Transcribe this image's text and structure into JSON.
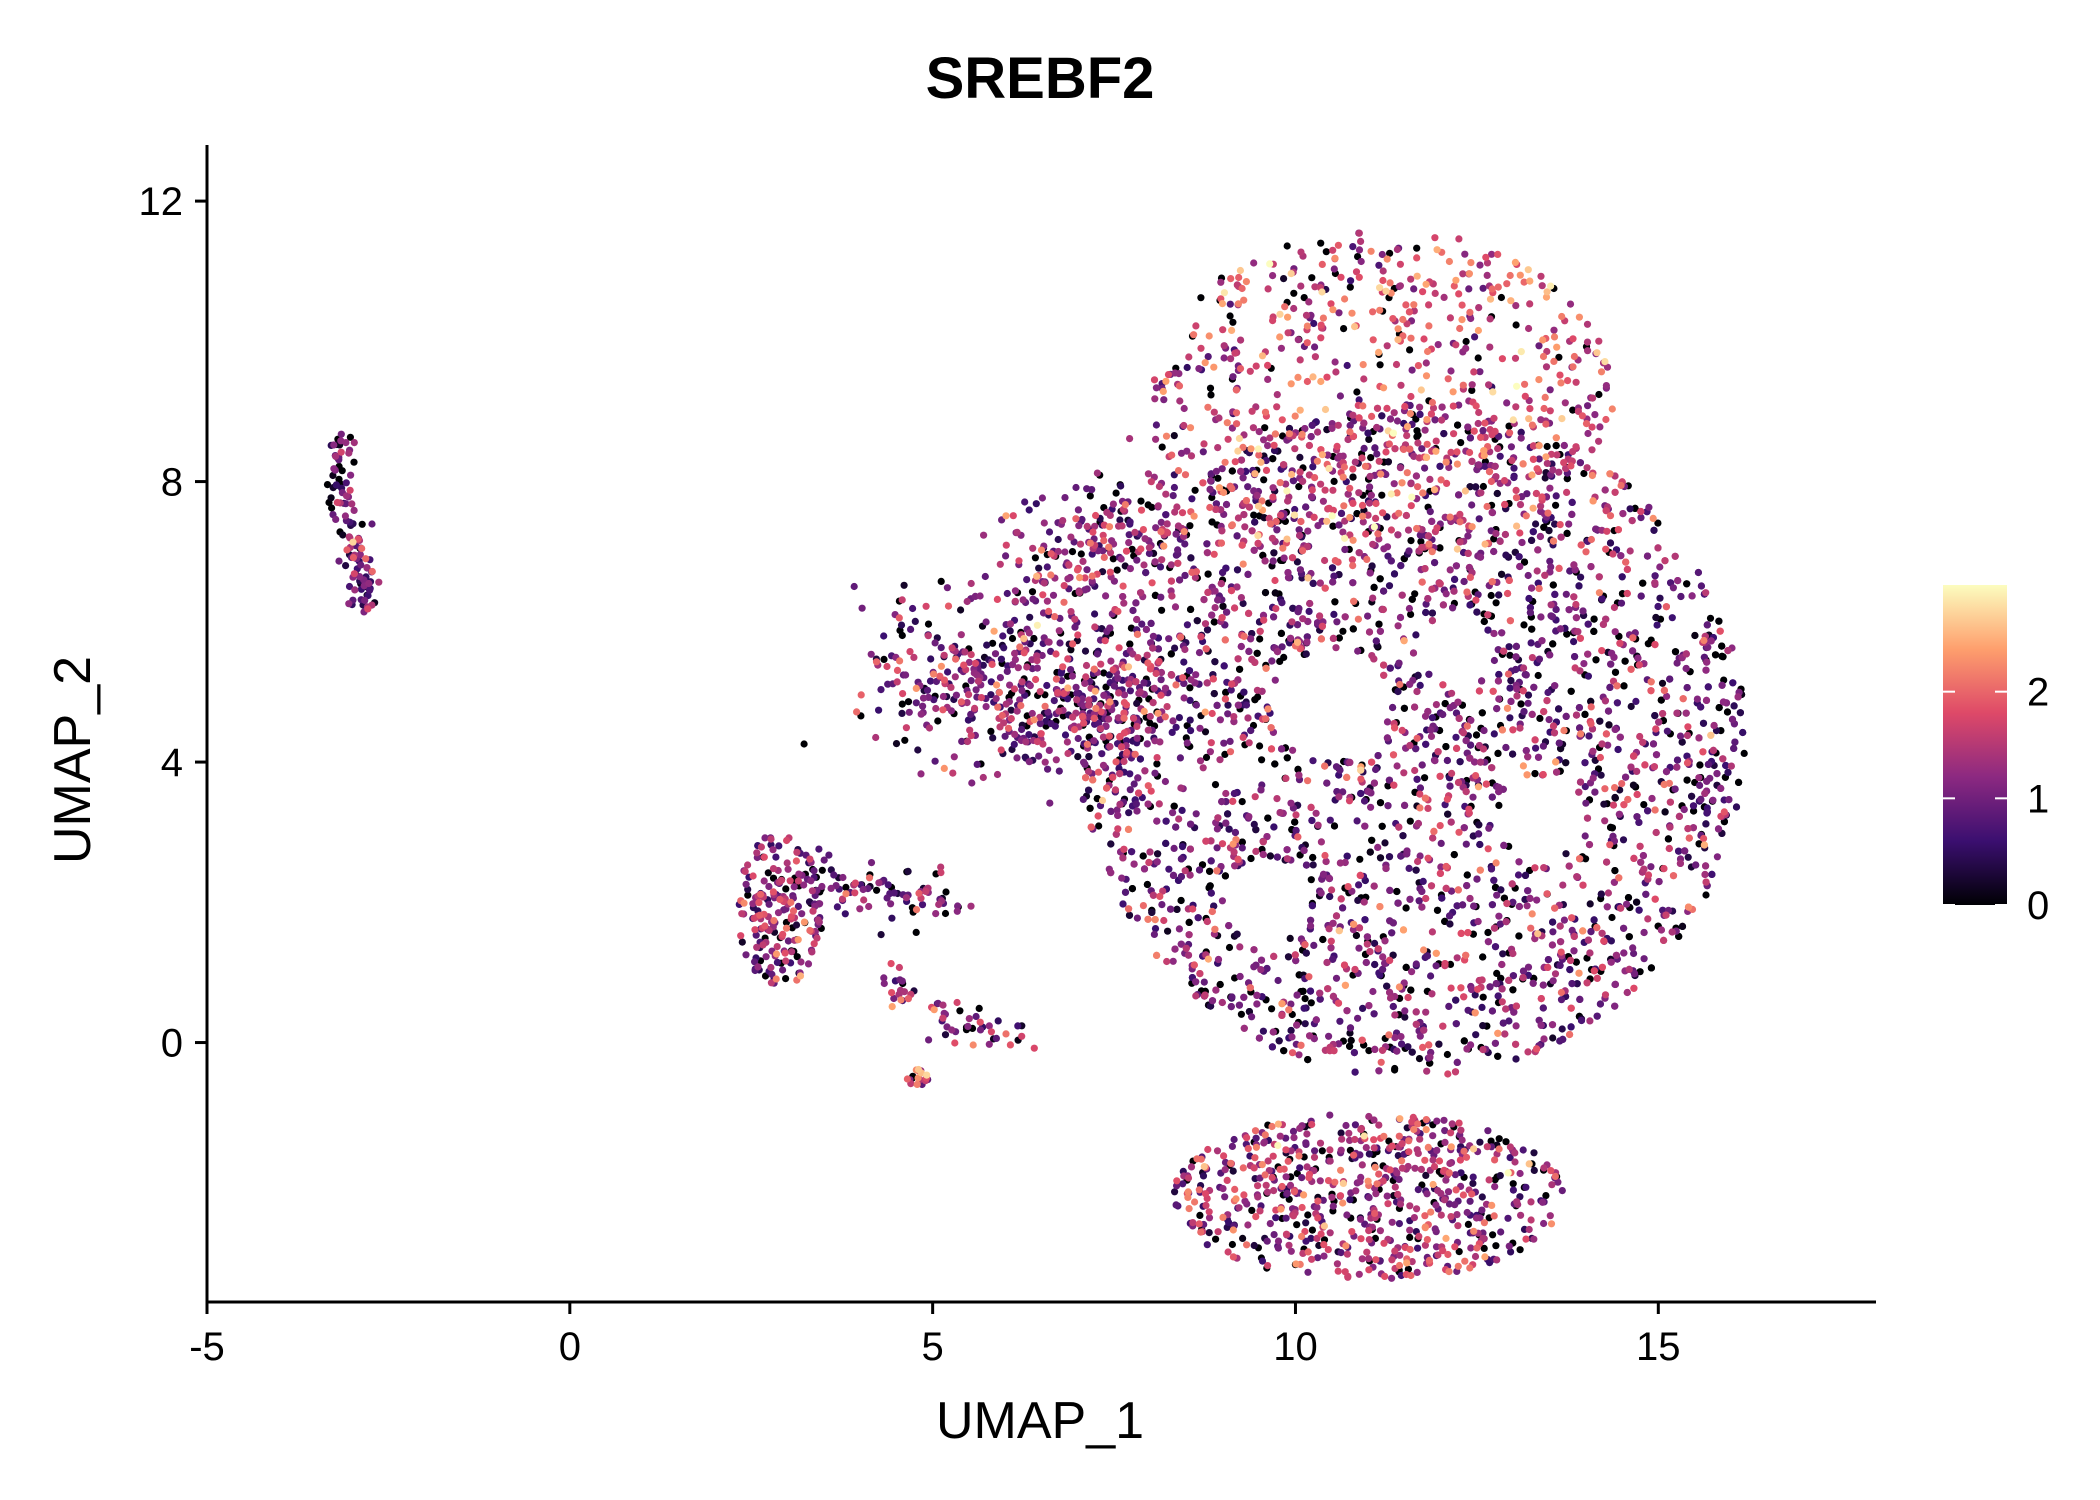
{
  "chart_data": {
    "type": "scatter",
    "title": "SREBF2",
    "xlabel": "UMAP_1",
    "ylabel": "UMAP_2",
    "xlim": [
      -5,
      18
    ],
    "ylim": [
      -3.7,
      12.8
    ],
    "xticks": [
      -5,
      0,
      5,
      10,
      15
    ],
    "xtick_labels": [
      "-5",
      "0",
      "5",
      "10",
      "15"
    ],
    "yticks": [
      0,
      4,
      8,
      12
    ],
    "ytick_labels": [
      "0",
      "4",
      "8",
      "12"
    ],
    "grid": false,
    "colorbar": {
      "range": [
        0,
        3
      ],
      "ticks": [
        0,
        1,
        2
      ],
      "tick_labels": [
        "0",
        "1",
        "2"
      ],
      "colormap": "magma",
      "colors": [
        "#000004",
        "#3b0f70",
        "#8c2981",
        "#de4968",
        "#fe9f6d",
        "#fcfdbf"
      ]
    },
    "clusters": [
      {
        "name": "thin_strand",
        "points": 120,
        "shape": "polyline",
        "path": [
          [
            -3.15,
            8.65
          ],
          [
            -3.2,
            8.0
          ],
          [
            -3.05,
            7.4
          ],
          [
            -2.9,
            6.8
          ],
          [
            -2.8,
            6.2
          ]
        ],
        "spread": 0.09,
        "mean_expr": 1.1,
        "ymin_edge": 6.1
      },
      {
        "name": "left_patch",
        "points": 200,
        "shape": "ellipse",
        "center": [
          2.9,
          1.9
        ],
        "radii": [
          0.6,
          1.1
        ],
        "mean_expr": 1.2
      },
      {
        "name": "left_patch_tail",
        "points": 90,
        "shape": "polyline",
        "path": [
          [
            3.2,
            2.3
          ],
          [
            4.2,
            2.2
          ],
          [
            5.3,
            2.0
          ]
        ],
        "spread": 0.18,
        "mean_expr": 0.9
      },
      {
        "name": "left_patch_lower",
        "points": 60,
        "shape": "polyline",
        "path": [
          [
            4.4,
            0.9
          ],
          [
            5.2,
            0.3
          ],
          [
            6.1,
            0.05
          ]
        ],
        "spread": 0.15,
        "mean_expr": 1.2
      },
      {
        "name": "small_dot",
        "points": 18,
        "shape": "ellipse",
        "center": [
          4.8,
          -0.5
        ],
        "radii": [
          0.15,
          0.12
        ],
        "mean_expr": 1.7
      },
      {
        "name": "main_body",
        "points": 4200,
        "shape": "ellipse",
        "center": [
          11.6,
          4.3
        ],
        "radii": [
          4.6,
          4.8
        ],
        "mean_expr": 1.1,
        "holes": [
          [
            10.5,
            4.8,
            0.8
          ],
          [
            8.6,
            4.1,
            0.7
          ],
          [
            9.6,
            2.0,
            0.6
          ],
          [
            13.4,
            3.2,
            0.6
          ],
          [
            12.2,
            5.6,
            0.5
          ],
          [
            13.3,
            9.6,
            0.8
          ]
        ]
      },
      {
        "name": "main_top",
        "points": 700,
        "shape": "ellipse",
        "center": [
          11.2,
          9.2
        ],
        "radii": [
          3.2,
          2.4
        ],
        "mean_expr": 1.7
      },
      {
        "name": "left_arm",
        "points": 600,
        "shape": "polyline",
        "path": [
          [
            4.6,
            5.3
          ],
          [
            6.0,
            5.0
          ],
          [
            7.3,
            4.7
          ],
          [
            8.6,
            4.4
          ]
        ],
        "spread": 0.55,
        "mean_expr": 1.1
      },
      {
        "name": "upper_left_arm",
        "points": 250,
        "shape": "polyline",
        "path": [
          [
            6.2,
            6.4
          ],
          [
            7.3,
            7.2
          ],
          [
            8.4,
            7.8
          ]
        ],
        "spread": 0.45,
        "mean_expr": 1.2
      },
      {
        "name": "bottom_lobe",
        "points": 700,
        "shape": "ellipse",
        "center": [
          11.0,
          -2.2
        ],
        "radii": [
          2.7,
          1.2
        ],
        "mean_expr": 1.3
      }
    ]
  }
}
